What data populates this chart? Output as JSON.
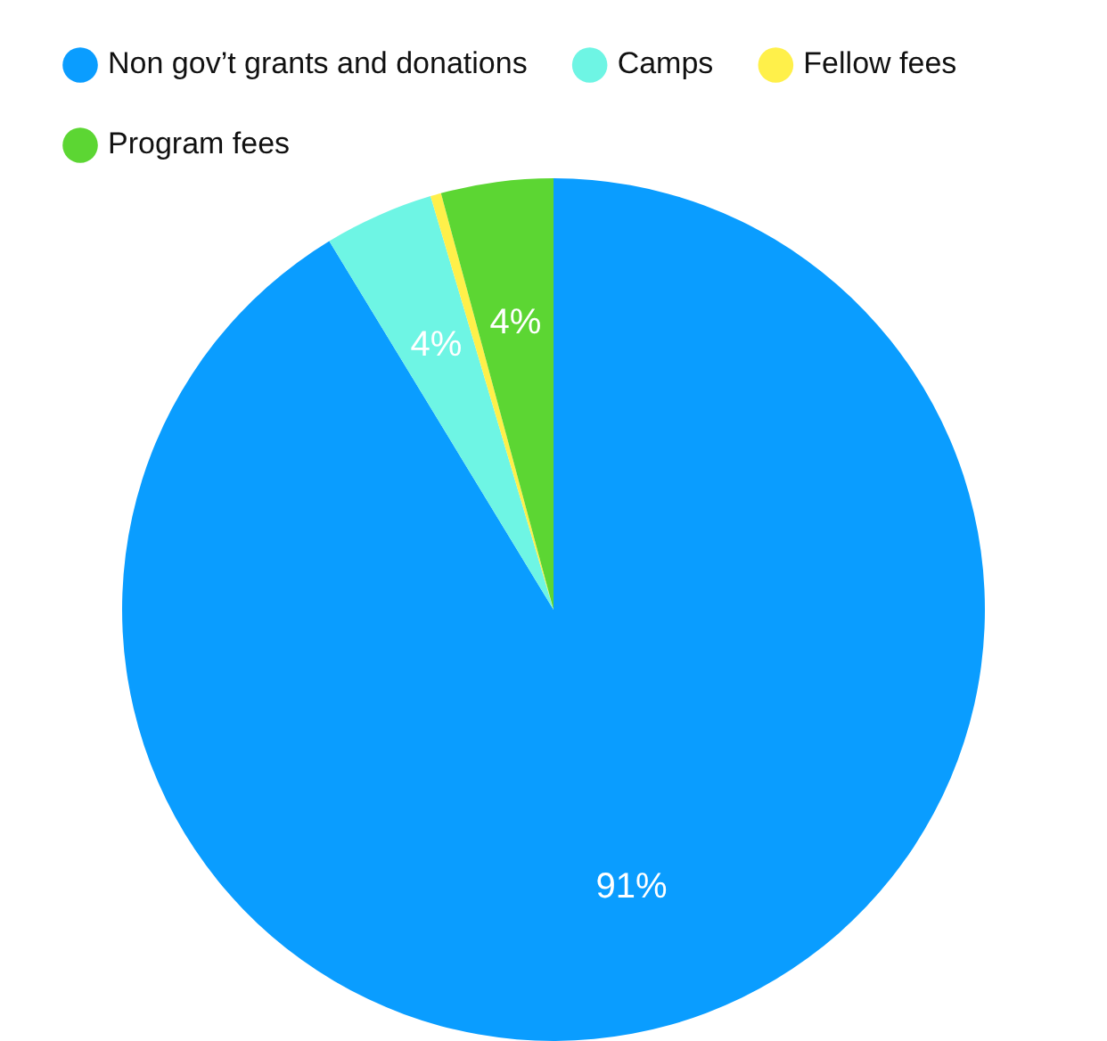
{
  "chart_data": {
    "type": "pie",
    "categories": [
      "Non gov’t grants and donations",
      "Camps",
      "Fellow fees",
      "Program fees"
    ],
    "values": [
      91.3,
      4.1,
      0.4,
      4.2
    ],
    "colors": [
      "#0a9dff",
      "#6ef5e4",
      "#fff04a",
      "#5cd633"
    ],
    "value_labels": [
      "91%",
      "4%",
      null,
      "4%"
    ],
    "legend": "top left"
  }
}
